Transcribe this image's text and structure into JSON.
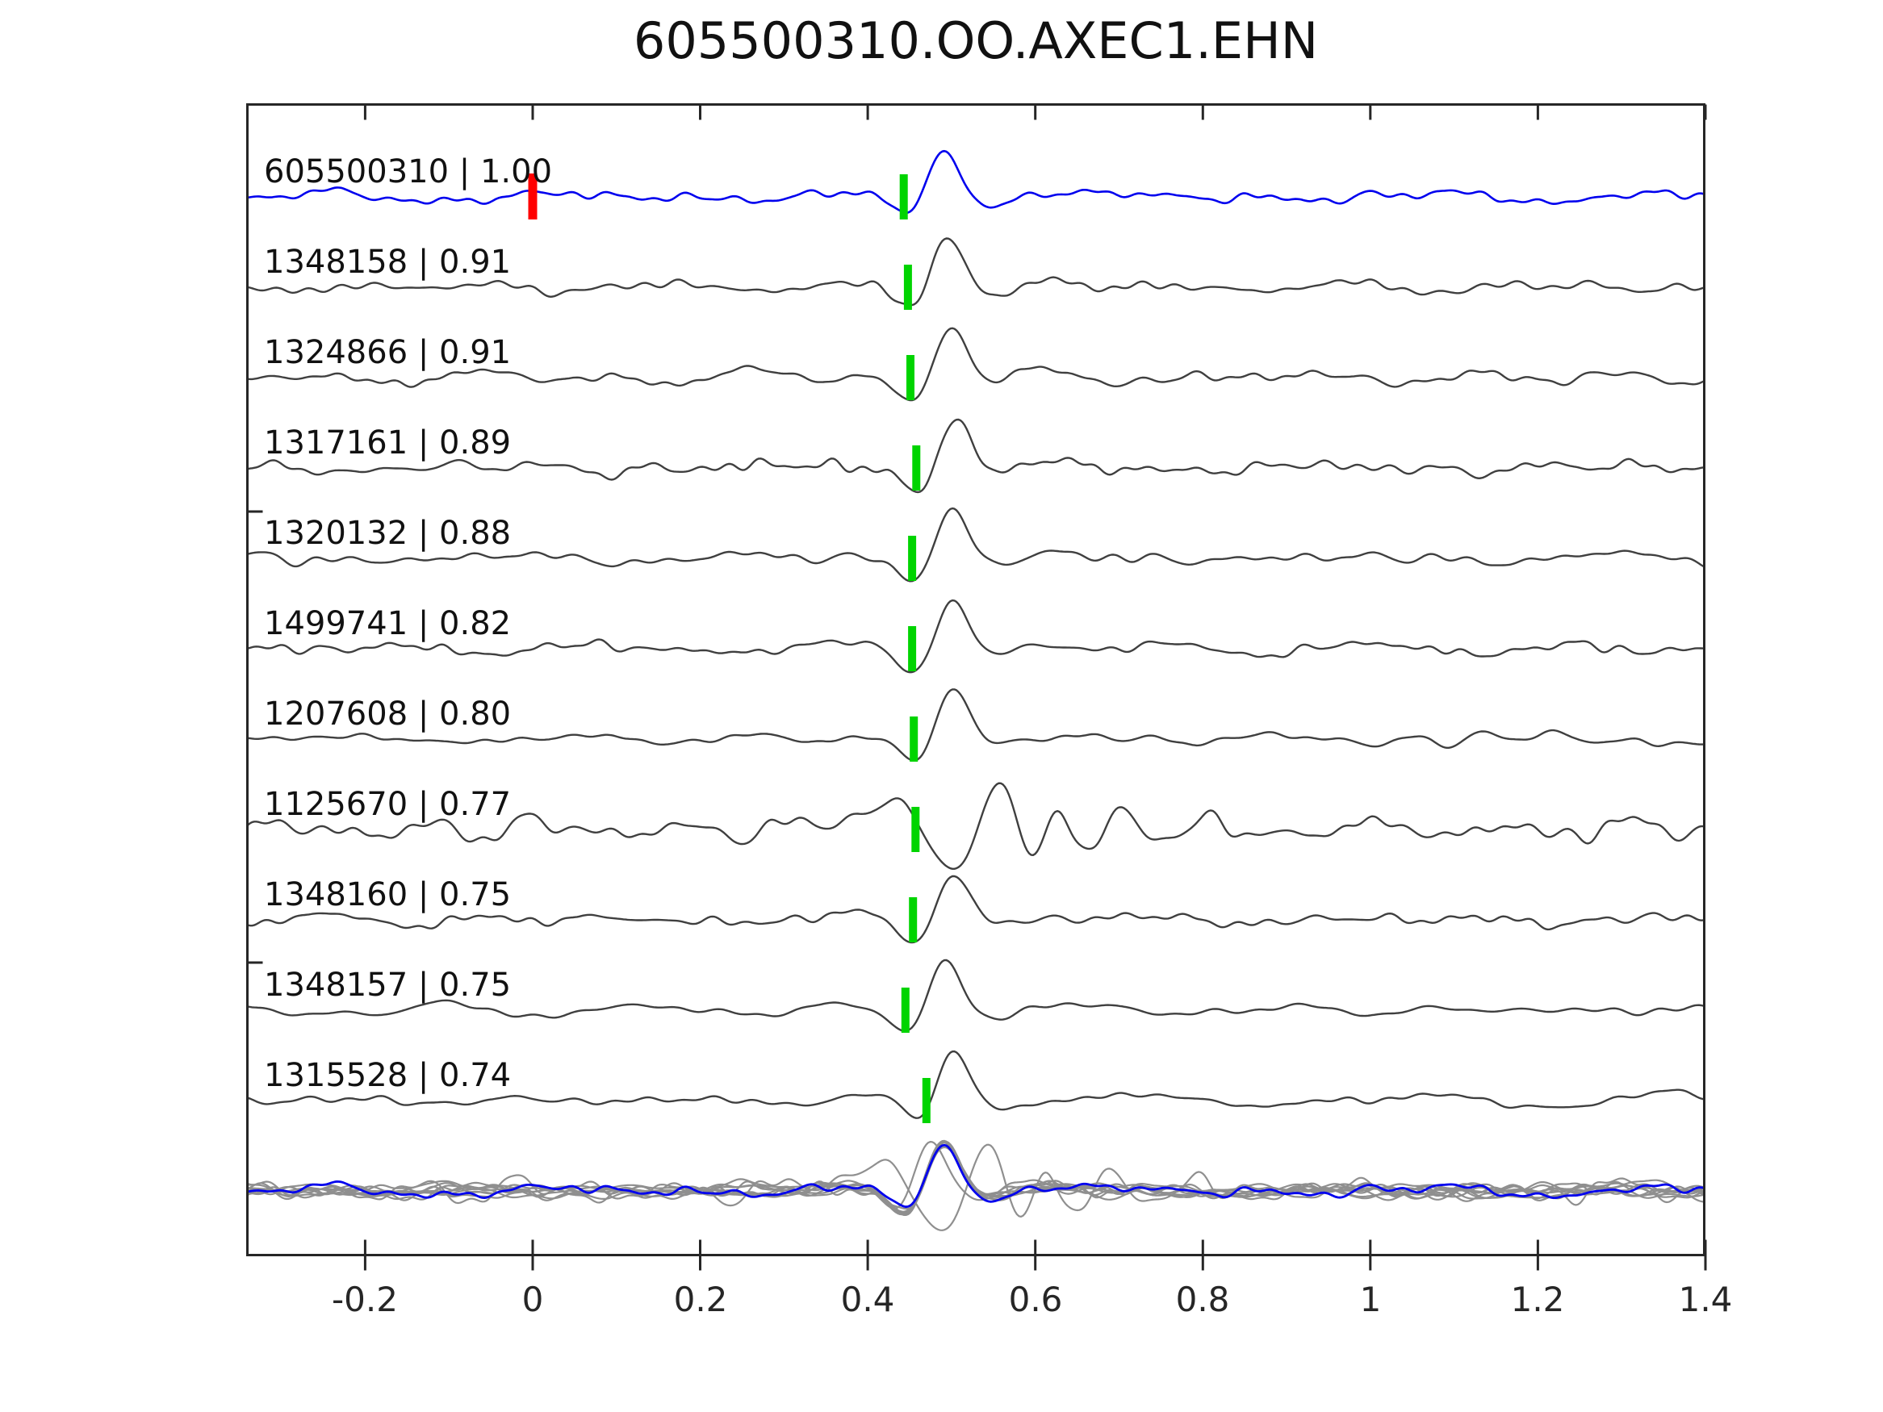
{
  "title": "605500310.OO.AXEC1.EHN",
  "colors": {
    "template_trace": "#0000ee",
    "detection_trace": "#3f3f3f",
    "overlay_gray": "#8f8f8f",
    "pick_marker_green": "#00d400",
    "template_marker_red": "#ff0000",
    "axis": "#262626",
    "background": "#ffffff",
    "text": "#111111"
  },
  "chart_data": {
    "type": "line",
    "title": "605500310.OO.AXEC1.EHN",
    "xlabel": "",
    "ylabel": "",
    "xlim": [
      -0.342,
      1.4
    ],
    "grid": false,
    "legend": "none",
    "description": "Template waveform (blue, top) vs 10 detected waveforms (dark gray rows); green bars = pick times, red bar = template zero time; bottom row = all detections aligned on pick (gray) overlain by template (blue).",
    "xticks": [
      {
        "v": -0.2,
        "label": "-0.2"
      },
      {
        "v": 0,
        "label": "0"
      },
      {
        "v": 0.2,
        "label": "0.2"
      },
      {
        "v": 0.4,
        "label": "0.4"
      },
      {
        "v": 0.6,
        "label": "0.6"
      },
      {
        "v": 0.8,
        "label": "0.8"
      },
      {
        "v": 1,
        "label": "1"
      },
      {
        "v": 1.2,
        "label": "1.2"
      },
      {
        "v": 1.4,
        "label": "1.4"
      }
    ],
    "template_marker": {
      "time": 0.0,
      "color": "#ff0000"
    },
    "overlay_row": {
      "align_pick_to": 0.443,
      "gray": "#8f8f8f",
      "members": [
        1,
        2,
        3,
        4,
        5,
        6,
        7,
        8,
        9,
        10
      ],
      "template_index": 0
    },
    "traces": [
      {
        "id": "605500310",
        "cc": 1.0,
        "label": "605500310 | 1.00",
        "role": "template",
        "color": "#0000ee",
        "pick_time": 0.443,
        "amp": 63,
        "noise_amp": 6.0,
        "seed": 7,
        "components": [
          {
            "t": 0.383,
            "w": 0.035,
            "a": 0.07
          },
          {
            "t": 0.447,
            "w": 0.02,
            "a": -0.5
          },
          {
            "t": 0.49,
            "w": 0.019,
            "a": 1.0
          },
          {
            "t": 0.542,
            "w": 0.025,
            "a": -0.16
          },
          {
            "t": 0.601,
            "w": 0.032,
            "a": 0.1
          }
        ]
      },
      {
        "id": "1348158",
        "cc": 0.91,
        "label": "1348158 | 0.91",
        "role": "detection",
        "color": "#3f3f3f",
        "pick_time": 0.448,
        "amp": 66,
        "noise_amp": 6.0,
        "seed": 21,
        "components": [
          {
            "t": 0.388,
            "w": 0.035,
            "a": 0.07
          },
          {
            "t": 0.452,
            "w": 0.02,
            "a": -0.5
          },
          {
            "t": 0.495,
            "w": 0.019,
            "a": 1.0
          },
          {
            "t": 0.55,
            "w": 0.025,
            "a": -0.13
          },
          {
            "t": 0.606,
            "w": 0.032,
            "a": 0.09
          }
        ]
      },
      {
        "id": "1324866",
        "cc": 0.91,
        "label": "1324866 | 0.91",
        "role": "detection",
        "color": "#3f3f3f",
        "pick_time": 0.451,
        "amp": 68,
        "noise_amp": 6.0,
        "seed": 33,
        "components": [
          {
            "t": 0.391,
            "w": 0.035,
            "a": 0.07
          },
          {
            "t": 0.455,
            "w": 0.02,
            "a": -0.5
          },
          {
            "t": 0.498,
            "w": 0.019,
            "a": 1.0
          },
          {
            "t": 0.553,
            "w": 0.025,
            "a": -0.13
          },
          {
            "t": 0.609,
            "w": 0.032,
            "a": 0.09
          }
        ]
      },
      {
        "id": "1317161",
        "cc": 0.89,
        "label": "1317161 | 0.89",
        "role": "detection",
        "color": "#3f3f3f",
        "pick_time": 0.458,
        "amp": 64,
        "noise_amp": 6.0,
        "seed": 44,
        "components": [
          {
            "t": 0.398,
            "w": 0.035,
            "a": 0.07
          },
          {
            "t": 0.462,
            "w": 0.02,
            "a": -0.5
          },
          {
            "t": 0.505,
            "w": 0.019,
            "a": 1.0
          },
          {
            "t": 0.56,
            "w": 0.025,
            "a": -0.13
          },
          {
            "t": 0.616,
            "w": 0.032,
            "a": 0.09
          }
        ]
      },
      {
        "id": "1320132",
        "cc": 0.88,
        "label": "1320132 | 0.88",
        "role": "detection",
        "color": "#3f3f3f",
        "pick_time": 0.453,
        "amp": 64,
        "noise_amp": 6.0,
        "seed": 55,
        "components": [
          {
            "t": 0.393,
            "w": 0.035,
            "a": 0.07
          },
          {
            "t": 0.457,
            "w": 0.02,
            "a": -0.5
          },
          {
            "t": 0.5,
            "w": 0.019,
            "a": 1.0
          },
          {
            "t": 0.555,
            "w": 0.025,
            "a": -0.13
          },
          {
            "t": 0.611,
            "w": 0.032,
            "a": 0.09
          }
        ]
      },
      {
        "id": "1499741",
        "cc": 0.82,
        "label": "1499741 | 0.82",
        "role": "detection",
        "color": "#3f3f3f",
        "pick_time": 0.453,
        "amp": 63,
        "noise_amp": 6.0,
        "seed": 66,
        "components": [
          {
            "t": 0.393,
            "w": 0.035,
            "a": 0.07
          },
          {
            "t": 0.457,
            "w": 0.02,
            "a": -0.5
          },
          {
            "t": 0.5,
            "w": 0.019,
            "a": 1.0
          },
          {
            "t": 0.555,
            "w": 0.025,
            "a": -0.13
          },
          {
            "t": 0.611,
            "w": 0.032,
            "a": 0.09
          }
        ]
      },
      {
        "id": "1207608",
        "cc": 0.8,
        "label": "1207608 | 0.80",
        "role": "detection",
        "color": "#3f3f3f",
        "pick_time": 0.455,
        "amp": 65,
        "noise_amp": 6.5,
        "seed": 77,
        "components": [
          {
            "t": 0.395,
            "w": 0.035,
            "a": 0.07
          },
          {
            "t": 0.459,
            "w": 0.02,
            "a": -0.5
          },
          {
            "t": 0.502,
            "w": 0.019,
            "a": 1.0
          },
          {
            "t": 0.557,
            "w": 0.025,
            "a": -0.13
          },
          {
            "t": 0.613,
            "w": 0.032,
            "a": 0.09
          }
        ]
      },
      {
        "id": "1125670",
        "cc": 0.77,
        "label": "1125670 | 0.77",
        "role": "detection",
        "color": "#3f3f3f",
        "pick_time": 0.457,
        "amp": 60,
        "noise_amp": 9.0,
        "seed": 88,
        "components": [
          {
            "t": 0.398,
            "w": 0.03,
            "a": 0.3
          },
          {
            "t": 0.442,
            "w": 0.018,
            "a": 0.58
          },
          {
            "t": 0.472,
            "w": 0.012,
            "a": -0.25
          },
          {
            "t": 0.505,
            "w": 0.02,
            "a": -0.85
          },
          {
            "t": 0.556,
            "w": 0.018,
            "a": 1.1
          },
          {
            "t": 0.594,
            "w": 0.014,
            "a": -0.72
          },
          {
            "t": 0.626,
            "w": 0.013,
            "a": 0.45
          },
          {
            "t": 0.66,
            "w": 0.016,
            "a": -0.5
          },
          {
            "t": 0.701,
            "w": 0.018,
            "a": 0.33
          },
          {
            "t": 0.746,
            "w": 0.02,
            "a": -0.26
          },
          {
            "t": 0.8,
            "w": 0.026,
            "a": 0.28
          },
          {
            "t": 0.862,
            "w": 0.026,
            "a": -0.16
          }
        ]
      },
      {
        "id": "1348160",
        "cc": 0.75,
        "label": "1348160 | 0.75",
        "role": "detection",
        "color": "#3f3f3f",
        "pick_time": 0.454,
        "amp": 62,
        "noise_amp": 6.0,
        "seed": 99,
        "components": [
          {
            "t": 0.394,
            "w": 0.035,
            "a": 0.07
          },
          {
            "t": 0.458,
            "w": 0.02,
            "a": -0.5
          },
          {
            "t": 0.501,
            "w": 0.019,
            "a": 1.0
          },
          {
            "t": 0.556,
            "w": 0.025,
            "a": -0.13
          },
          {
            "t": 0.612,
            "w": 0.032,
            "a": 0.09
          }
        ]
      },
      {
        "id": "1348157",
        "cc": 0.75,
        "label": "1348157 | 0.75",
        "role": "detection",
        "color": "#3f3f3f",
        "pick_time": 0.445,
        "amp": 64,
        "noise_amp": 6.0,
        "seed": 110,
        "components": [
          {
            "t": 0.385,
            "w": 0.035,
            "a": 0.07
          },
          {
            "t": 0.449,
            "w": 0.02,
            "a": -0.5
          },
          {
            "t": 0.492,
            "w": 0.019,
            "a": 1.0
          },
          {
            "t": 0.547,
            "w": 0.025,
            "a": -0.13
          },
          {
            "t": 0.603,
            "w": 0.032,
            "a": 0.09
          }
        ]
      },
      {
        "id": "1315528",
        "cc": 0.74,
        "label": "1315528 | 0.74",
        "role": "detection",
        "color": "#3f3f3f",
        "pick_time": 0.47,
        "amp": 63,
        "noise_amp": 6.5,
        "seed": 121,
        "components": [
          {
            "t": 0.405,
            "w": 0.035,
            "a": 0.07
          },
          {
            "t": 0.462,
            "w": 0.018,
            "a": -0.48
          },
          {
            "t": 0.502,
            "w": 0.018,
            "a": 1.0
          },
          {
            "t": 0.556,
            "w": 0.025,
            "a": -0.13
          },
          {
            "t": 0.612,
            "w": 0.032,
            "a": 0.09
          }
        ]
      }
    ]
  }
}
